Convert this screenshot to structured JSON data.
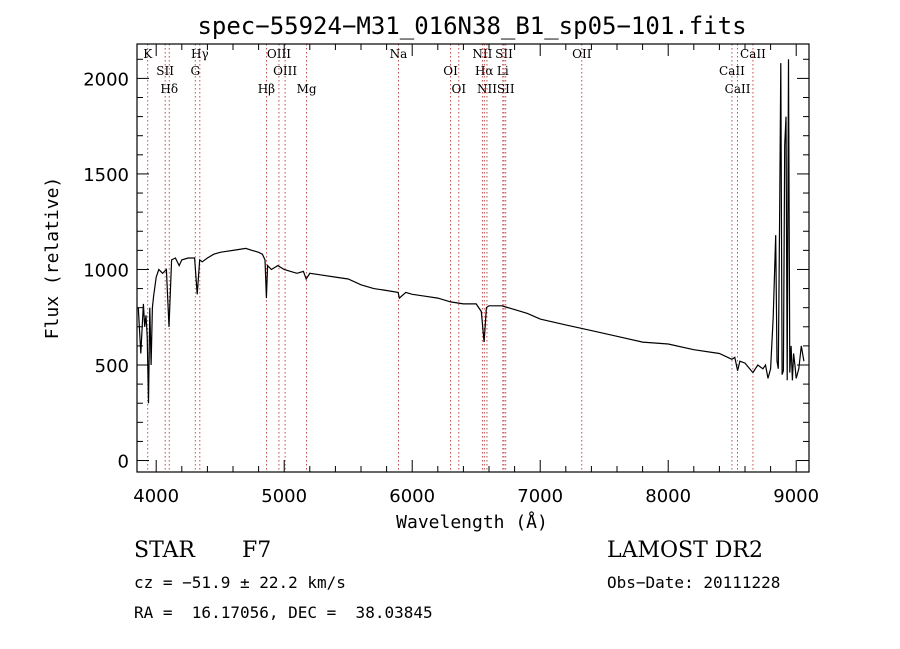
{
  "chart_data": {
    "type": "line",
    "title": "spec−55924−M31_016N38_B1_sp05−101.fits",
    "xlabel": "Wavelength (Å)",
    "ylabel": "Flux (relative)",
    "xlim": [
      3850,
      9100
    ],
    "ylim": [
      -60,
      2180
    ],
    "xticks": [
      4000,
      5000,
      6000,
      7000,
      8000,
      9000
    ],
    "yticks": [
      0,
      500,
      1000,
      1500,
      2000
    ],
    "grid": false,
    "series": [
      {
        "x": [
          3860,
          3880,
          3900,
          3910,
          3920,
          3930,
          3940,
          3950,
          3960,
          3970,
          3980,
          4000,
          4020,
          4050,
          4080,
          4100,
          4120,
          4150,
          4180,
          4200,
          4250,
          4300,
          4320,
          4340,
          4360,
          4400,
          4450,
          4500,
          4550,
          4600,
          4650,
          4700,
          4750,
          4800,
          4830,
          4850,
          4861,
          4870,
          4900,
          4950,
          5000,
          5050,
          5100,
          5150,
          5172,
          5200,
          5300,
          5400,
          5500,
          5600,
          5700,
          5800,
          5890,
          5900,
          5950,
          6000,
          6100,
          6200,
          6300,
          6400,
          6500,
          6540,
          6562,
          6580,
          6600,
          6700,
          6800,
          6900,
          7000,
          7200,
          7400,
          7600,
          7800,
          8000,
          8200,
          8400,
          8498,
          8520,
          8542,
          8560,
          8600,
          8662,
          8700,
          8740,
          8760,
          8780,
          8800,
          8820,
          8840,
          8850,
          8860,
          8870,
          8880,
          8890,
          8900,
          8910,
          8920,
          8930,
          8940,
          8950,
          8960,
          8970,
          8980,
          8990,
          9000,
          9020,
          9040,
          9060
        ],
        "y": [
          800,
          560,
          820,
          700,
          760,
          650,
          300,
          800,
          500,
          800,
          860,
          960,
          1000,
          980,
          1000,
          700,
          1050,
          1060,
          1020,
          1050,
          1060,
          1060,
          870,
          1050,
          1040,
          1060,
          1080,
          1090,
          1095,
          1100,
          1105,
          1110,
          1100,
          1090,
          1080,
          1050,
          850,
          1020,
          1000,
          1020,
          1000,
          990,
          980,
          990,
          950,
          980,
          970,
          960,
          950,
          920,
          900,
          890,
          880,
          850,
          880,
          870,
          860,
          850,
          830,
          820,
          820,
          780,
          620,
          800,
          810,
          810,
          790,
          770,
          740,
          710,
          680,
          650,
          620,
          610,
          580,
          560,
          530,
          540,
          470,
          520,
          510,
          460,
          500,
          480,
          500,
          430,
          480,
          750,
          1180,
          520,
          480,
          1260,
          2080,
          450,
          470,
          1650,
          1800,
          420,
          2100,
          460,
          600,
          420,
          560,
          500,
          430,
          480,
          600,
          520
        ]
      }
    ],
    "spectral_lines": [
      {
        "label": "K",
        "x": 3934
      },
      {
        "label": "SII",
        "x": 4070
      },
      {
        "label": "Hδ",
        "x": 4102
      },
      {
        "label": "Hγ",
        "x": 4341
      },
      {
        "label": "G",
        "x": 4305
      },
      {
        "label": "Hβ",
        "x": 4861
      },
      {
        "label": "OIII",
        "x": 4959
      },
      {
        "label": "OIII",
        "x": 5007
      },
      {
        "label": "Mg",
        "x": 5175
      },
      {
        "label": "Na",
        "x": 5893
      },
      {
        "label": "OI",
        "x": 6300
      },
      {
        "label": "OI",
        "x": 6364
      },
      {
        "label": "NII",
        "x": 6548
      },
      {
        "label": "Hα",
        "x": 6563
      },
      {
        "label": "NII",
        "x": 6584
      },
      {
        "label": "SII",
        "x": 6717
      },
      {
        "label": "Li",
        "x": 6708
      },
      {
        "label": "SII",
        "x": 6731
      },
      {
        "label": "OII",
        "x": 7325
      },
      {
        "label": "CaII",
        "x": 8498
      },
      {
        "label": "CaII",
        "x": 8542
      },
      {
        "label": "CaII",
        "x": 8662
      }
    ]
  },
  "info": {
    "class_label": "STAR",
    "subclass": "F7",
    "survey": "LAMOST DR2",
    "cz": "cz = −51.9 ± 22.2 km/s",
    "obs_date": "Obs−Date: 20111228",
    "coords": "RA =  16.17056, DEC =  38.03845"
  },
  "colors": {
    "spectrum": "#000000",
    "line_marker": "#b22222",
    "axis": "#000000"
  }
}
